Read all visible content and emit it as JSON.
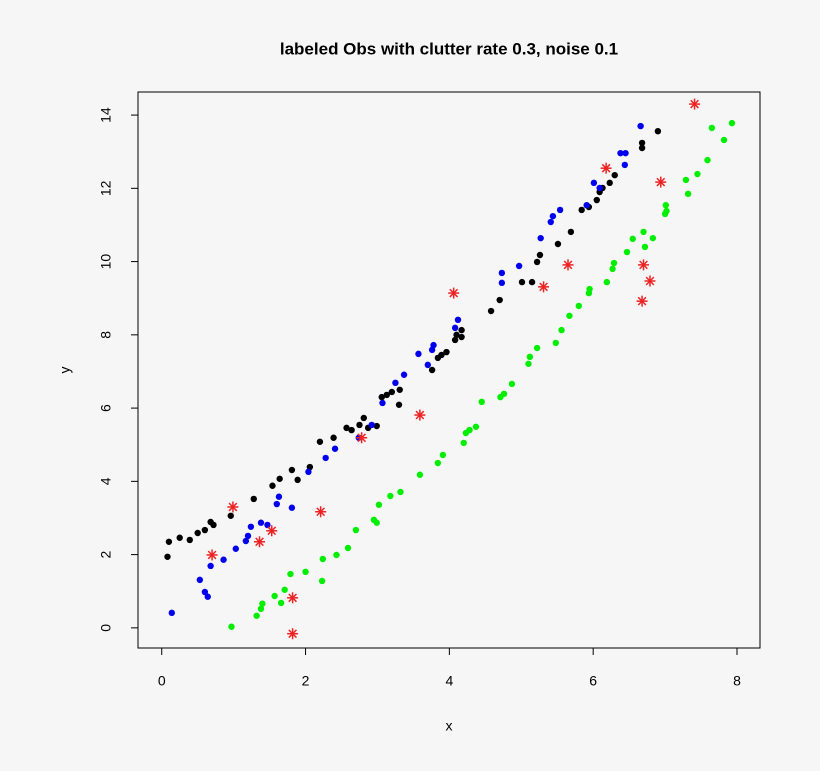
{
  "chart_data": {
    "type": "scatter",
    "title": "labeled Obs with clutter rate 0.3, noise 0.1",
    "x_label": "x",
    "y_label": "y",
    "xlim": [
      -0.33,
      8.32
    ],
    "ylim": [
      -0.55,
      14.63
    ],
    "xticks": [
      0,
      2,
      4,
      6,
      8
    ],
    "yticks": [
      0,
      2,
      4,
      6,
      8,
      10,
      12,
      14
    ],
    "series": [
      {
        "color": "#000000",
        "marker": "dot",
        "x": [
          0.08,
          0.1,
          0.25,
          0.39,
          0.5,
          0.6,
          0.68,
          0.72,
          0.96,
          1.28,
          1.54,
          1.64,
          1.81,
          1.89,
          2.06,
          2.2,
          2.39,
          2.57,
          2.64,
          2.75,
          2.81,
          2.87,
          2.99,
          3.06,
          3.13,
          3.2,
          3.3,
          3.31,
          3.76,
          3.84,
          3.89,
          3.96,
          4.08,
          4.1,
          4.17,
          4.17,
          4.58,
          4.7,
          5.01,
          5.15,
          5.22,
          5.26,
          5.51,
          5.69,
          5.84,
          5.94,
          6.05,
          6.09,
          6.13,
          6.23,
          6.3,
          6.68,
          6.68,
          6.9
        ],
        "values": [
          1.94,
          2.35,
          2.46,
          2.4,
          2.59,
          2.67,
          2.89,
          2.81,
          3.06,
          3.52,
          3.88,
          4.07,
          4.31,
          4.04,
          4.39,
          5.08,
          5.19,
          5.46,
          5.4,
          5.54,
          5.73,
          5.46,
          5.51,
          6.3,
          6.36,
          6.44,
          6.09,
          6.5,
          7.04,
          7.37,
          7.45,
          7.53,
          7.86,
          8.0,
          8.13,
          7.94,
          8.65,
          8.95,
          9.44,
          9.44,
          9.99,
          10.18,
          10.48,
          10.81,
          11.41,
          11.49,
          11.68,
          11.9,
          12.01,
          12.15,
          12.36,
          13.1,
          13.24,
          13.56
        ]
      },
      {
        "color": "#0000ee",
        "marker": "dot",
        "x": [
          0.14,
          0.53,
          0.6,
          0.64,
          0.68,
          0.86,
          1.03,
          1.17,
          1.2,
          1.24,
          1.38,
          1.47,
          1.6,
          1.63,
          1.81,
          2.04,
          2.28,
          2.41,
          2.74,
          2.92,
          3.07,
          3.25,
          3.37,
          3.57,
          3.7,
          3.76,
          3.78,
          4.08,
          4.12,
          4.73,
          4.73,
          4.97,
          5.27,
          5.41,
          5.44,
          5.54,
          5.91,
          6.01,
          6.09,
          6.38,
          6.44,
          6.45,
          6.66
        ],
        "values": [
          0.41,
          1.31,
          0.98,
          0.85,
          1.69,
          1.86,
          2.16,
          2.37,
          2.51,
          2.76,
          2.87,
          2.81,
          3.38,
          3.58,
          3.28,
          4.26,
          4.64,
          4.89,
          5.19,
          5.54,
          6.14,
          6.69,
          6.91,
          7.48,
          7.18,
          7.59,
          7.72,
          8.19,
          8.41,
          9.69,
          9.42,
          9.88,
          10.64,
          11.08,
          11.24,
          11.41,
          11.54,
          12.15,
          12.01,
          12.96,
          12.64,
          12.96,
          13.7
        ]
      },
      {
        "color": "#00ee00",
        "marker": "dot",
        "x": [
          0.97,
          1.32,
          1.38,
          1.4,
          1.57,
          1.66,
          1.71,
          1.79,
          2.0,
          2.23,
          2.24,
          2.43,
          2.59,
          2.7,
          2.95,
          2.99,
          3.02,
          3.18,
          3.32,
          3.59,
          3.84,
          3.91,
          4.2,
          4.23,
          4.28,
          4.37,
          4.45,
          4.71,
          4.76,
          4.87,
          5.1,
          5.12,
          5.22,
          5.48,
          5.56,
          5.67,
          5.8,
          5.94,
          5.95,
          6.19,
          6.27,
          6.29,
          6.47,
          6.55,
          6.7,
          6.72,
          6.83,
          7.0,
          7.01,
          7.02,
          7.29,
          7.32,
          7.45,
          7.59,
          7.65,
          7.82,
          7.93
        ],
        "values": [
          0.03,
          0.33,
          0.52,
          0.66,
          0.87,
          0.68,
          1.04,
          1.47,
          1.53,
          1.28,
          1.88,
          1.99,
          2.18,
          2.67,
          2.95,
          2.87,
          3.36,
          3.6,
          3.71,
          4.18,
          4.5,
          4.72,
          5.05,
          5.32,
          5.4,
          5.49,
          6.17,
          6.3,
          6.39,
          6.66,
          7.21,
          7.4,
          7.64,
          7.78,
          8.13,
          8.52,
          8.79,
          9.14,
          9.25,
          9.44,
          9.8,
          9.96,
          10.26,
          10.62,
          10.81,
          10.4,
          10.64,
          11.3,
          11.54,
          11.38,
          12.23,
          11.85,
          12.39,
          12.77,
          13.65,
          13.32,
          13.78
        ]
      },
      {
        "color": "#ee2222",
        "marker": "asterisk",
        "x": [
          0.7,
          0.99,
          1.36,
          1.53,
          1.82,
          1.82,
          2.21,
          2.78,
          3.59,
          4.06,
          5.31,
          5.65,
          6.18,
          6.68,
          6.7,
          6.79,
          6.94,
          7.41
        ],
        "values": [
          1.99,
          3.3,
          2.35,
          2.65,
          0.82,
          -0.16,
          3.17,
          5.19,
          5.81,
          9.14,
          9.31,
          9.91,
          12.55,
          8.92,
          9.91,
          9.47,
          12.17,
          14.3
        ]
      }
    ]
  }
}
